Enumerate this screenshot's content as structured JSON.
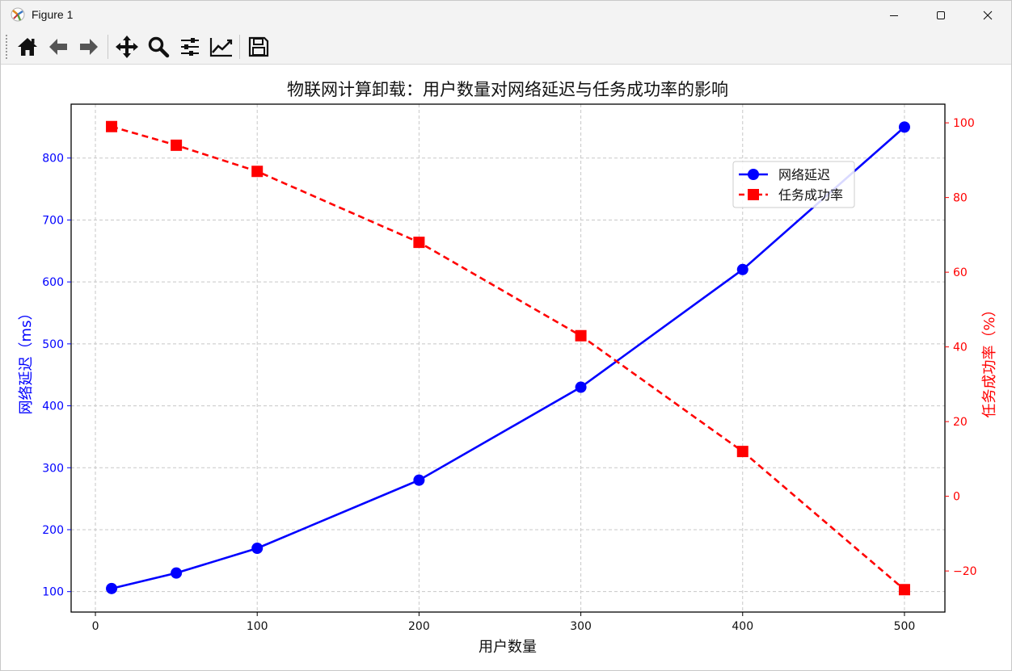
{
  "window": {
    "title": "Figure 1",
    "controls": [
      "minimize",
      "maximize",
      "close"
    ]
  },
  "toolbar": {
    "buttons": [
      {
        "name": "home-button",
        "icon": "home-icon"
      },
      {
        "name": "back-button",
        "icon": "arrow-left-icon"
      },
      {
        "name": "forward-button",
        "icon": "arrow-right-icon"
      },
      {
        "name": "pan-button",
        "icon": "move-icon"
      },
      {
        "name": "zoom-button",
        "icon": "magnifier-icon"
      },
      {
        "name": "configure-subplots-button",
        "icon": "sliders-icon"
      },
      {
        "name": "edit-axis-button",
        "icon": "line-chart-icon"
      },
      {
        "name": "save-button",
        "icon": "floppy-disk-icon"
      }
    ]
  },
  "chart_data": {
    "type": "line",
    "title": "物联网计算卸载：用户数量对网络延迟与任务成功率的影响",
    "xlabel": "用户数量",
    "x": [
      10,
      50,
      100,
      200,
      300,
      400,
      500
    ],
    "xlim": [
      -15,
      525
    ],
    "xticks": [
      "0",
      "100",
      "200",
      "300",
      "400",
      "500"
    ],
    "grid": true,
    "legend_position": "upper right",
    "axes": {
      "left": {
        "label": "网络延迟（ms）",
        "color": "#0000ff",
        "ylim": [
          67,
          887
        ],
        "ticks": [
          "100",
          "200",
          "300",
          "400",
          "500",
          "600",
          "700",
          "800"
        ]
      },
      "right": {
        "label": "任务成功率（%）",
        "color": "#ff0000",
        "ylim": [
          -31,
          105
        ],
        "ticks": [
          "−20",
          "0",
          "20",
          "40",
          "60",
          "80",
          "100"
        ]
      }
    },
    "series": [
      {
        "name": "网络延迟",
        "axis": "left",
        "color": "#0000ff",
        "marker": "circle",
        "linestyle": "solid",
        "values": [
          105,
          130,
          170,
          280,
          430,
          620,
          850
        ]
      },
      {
        "name": "任务成功率",
        "axis": "right",
        "color": "#ff0000",
        "marker": "square",
        "linestyle": "dashed",
        "values": [
          99,
          94,
          87,
          68,
          43,
          12,
          -25
        ]
      }
    ]
  }
}
